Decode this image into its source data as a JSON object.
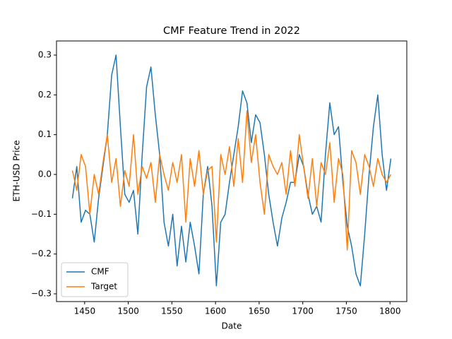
{
  "chart_data": {
    "type": "line",
    "title": "CMF Feature Trend in 2022",
    "x_label": "Date",
    "y_label": "ETH-USD Price",
    "x": [
      1436,
      1441,
      1446,
      1451,
      1456,
      1461,
      1466,
      1471,
      1476,
      1481,
      1486,
      1491,
      1496,
      1501,
      1506,
      1511,
      1516,
      1521,
      1526,
      1531,
      1536,
      1541,
      1546,
      1551,
      1556,
      1561,
      1566,
      1571,
      1576,
      1581,
      1586,
      1591,
      1596,
      1601,
      1606,
      1611,
      1616,
      1621,
      1626,
      1631,
      1636,
      1641,
      1646,
      1651,
      1656,
      1661,
      1666,
      1671,
      1676,
      1681,
      1686,
      1691,
      1696,
      1701,
      1706,
      1711,
      1716,
      1721,
      1726,
      1731,
      1736,
      1741,
      1746,
      1751,
      1756,
      1761,
      1766,
      1771,
      1776,
      1781,
      1786,
      1791,
      1796,
      1801
    ],
    "series": [
      {
        "name": "CMF",
        "color": "#1f77b4",
        "values": [
          -0.06,
          0.02,
          -0.12,
          -0.09,
          -0.1,
          -0.17,
          -0.06,
          0.02,
          0.1,
          0.25,
          0.3,
          0.12,
          -0.05,
          -0.07,
          -0.04,
          -0.15,
          0.05,
          0.22,
          0.27,
          0.15,
          0.05,
          -0.12,
          -0.18,
          -0.1,
          -0.23,
          -0.13,
          -0.22,
          -0.12,
          -0.18,
          -0.25,
          -0.05,
          0.02,
          -0.08,
          -0.28,
          -0.12,
          -0.1,
          -0.02,
          0.05,
          0.12,
          0.21,
          0.18,
          0.08,
          0.15,
          0.13,
          0.05,
          -0.05,
          -0.12,
          -0.18,
          -0.11,
          -0.07,
          -0.02,
          -0.02,
          0.05,
          0.02,
          -0.05,
          -0.1,
          -0.08,
          -0.12,
          0.05,
          0.18,
          0.1,
          0.12,
          -0.02,
          -0.13,
          -0.18,
          -0.25,
          -0.28,
          -0.15,
          0.0,
          0.12,
          0.2,
          0.05,
          -0.04,
          0.04
        ]
      },
      {
        "name": "Target",
        "color": "#ff7f0e",
        "values": [
          0.01,
          -0.04,
          0.05,
          0.02,
          -0.1,
          0.0,
          -0.05,
          0.03,
          0.1,
          -0.02,
          0.04,
          -0.08,
          0.01,
          -0.03,
          0.1,
          -0.05,
          0.02,
          -0.01,
          0.03,
          -0.07,
          0.05,
          0.0,
          -0.04,
          0.03,
          -0.02,
          0.05,
          -0.12,
          0.04,
          -0.03,
          0.06,
          -0.05,
          0.01,
          0.02,
          -0.17,
          0.05,
          0.0,
          0.07,
          -0.03,
          0.09,
          -0.02,
          0.16,
          0.03,
          0.1,
          -0.02,
          -0.1,
          0.05,
          0.02,
          0.0,
          0.03,
          -0.05,
          0.06,
          -0.03,
          0.1,
          0.02,
          -0.06,
          0.04,
          -0.08,
          0.03,
          0.0,
          0.08,
          -0.07,
          0.04,
          0.0,
          -0.19,
          0.06,
          0.03,
          -0.05,
          0.05,
          0.02,
          -0.03,
          0.04,
          0.0,
          -0.02,
          0.0
        ]
      }
    ],
    "xlim": [
      1417.75,
      1819.25
    ],
    "ylim": [
      -0.3195,
      0.3355
    ],
    "xticks": [
      1450,
      1500,
      1550,
      1600,
      1650,
      1700,
      1750,
      1800
    ],
    "yticks": [
      {
        "value": -0.3,
        "label": "−0.3"
      },
      {
        "value": -0.2,
        "label": "−0.2"
      },
      {
        "value": -0.1,
        "label": "−0.1"
      },
      {
        "value": 0,
        "label": "0.0"
      },
      0.1,
      0.2,
      0.3
    ],
    "grid": false,
    "legend": "lower left"
  }
}
